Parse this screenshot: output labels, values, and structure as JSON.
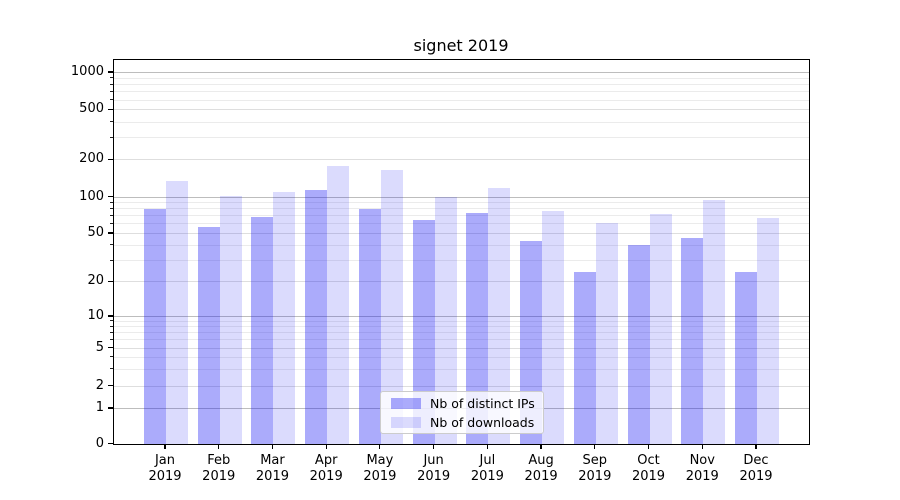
{
  "title": "signet 2019",
  "chart_data": {
    "type": "bar",
    "title": "signet 2019",
    "categories": [
      "Jan 2019",
      "Feb 2019",
      "Mar 2019",
      "Apr 2019",
      "May 2019",
      "Jun 2019",
      "Jul 2019",
      "Aug 2019",
      "Sep 2019",
      "Oct 2019",
      "Nov 2019",
      "Dec 2019"
    ],
    "months": [
      "Jan",
      "Feb",
      "Mar",
      "Apr",
      "May",
      "Jun",
      "Jul",
      "Aug",
      "Sep",
      "Oct",
      "Nov",
      "Dec"
    ],
    "year": "2019",
    "series": [
      {
        "name": "Nb of distinct IPs",
        "color": "#aaaafa",
        "values": [
          80,
          57,
          68,
          115,
          80,
          65,
          74,
          43,
          24,
          40,
          46,
          24
        ]
      },
      {
        "name": "Nb of downloads",
        "color": "#d9d9fb",
        "values": [
          135,
          101,
          110,
          178,
          167,
          100,
          119,
          76,
          61,
          72,
          95,
          67
        ]
      }
    ],
    "xlabel": "",
    "ylabel": "",
    "y_axis": {
      "scale": "log-above-1-linear-below-1",
      "ticks": [
        0,
        1,
        2,
        5,
        10,
        20,
        50,
        100,
        200,
        500,
        1000
      ],
      "ylim": [
        0,
        1250
      ],
      "grid": true
    },
    "legend": {
      "position": "lower-center",
      "entries": [
        "Nb of distinct IPs",
        "Nb of downloads"
      ]
    },
    "colors": {
      "bar_dark": "#aaaafa",
      "bar_light": "#d9d9fb",
      "grid_decade": "#bdbdbd",
      "grid_minor": "#ebebeb",
      "spine": "#000000",
      "legend_border": "#cccccc"
    }
  }
}
